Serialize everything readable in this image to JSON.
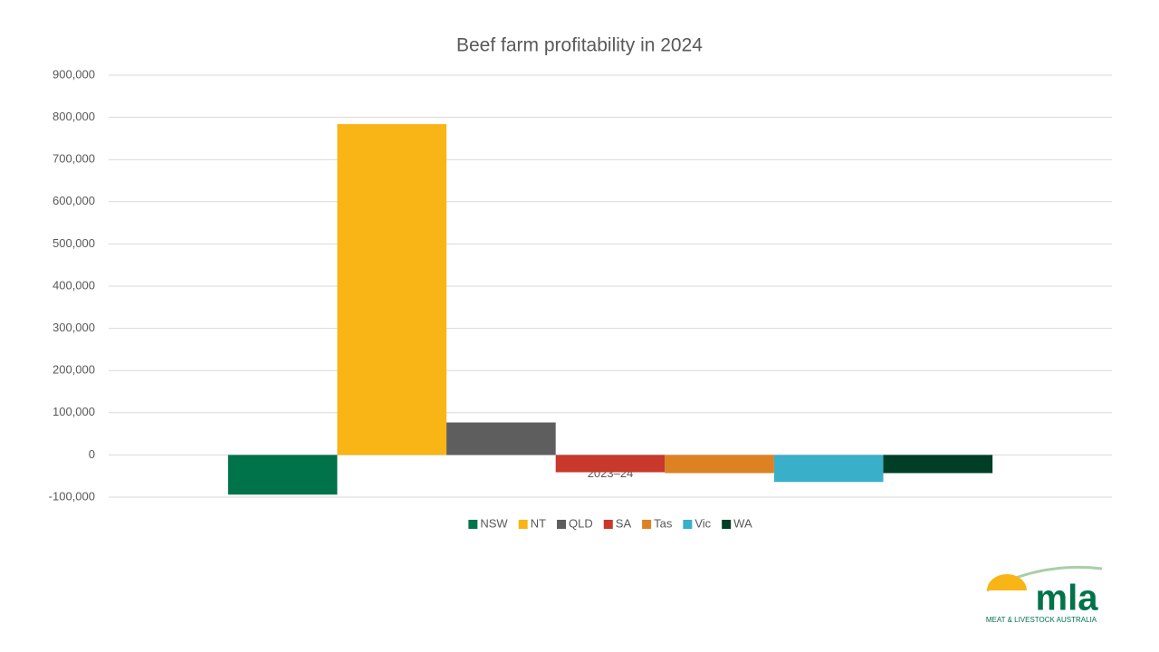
{
  "chart_data": {
    "type": "bar",
    "title": "Beef farm profitability in 2024",
    "categories": [
      "2023–24"
    ],
    "series": [
      {
        "name": "NSW",
        "color": "#00734a",
        "values": [
          -94000
        ]
      },
      {
        "name": "NT",
        "color": "#f9b515",
        "values": [
          784000
        ]
      },
      {
        "name": "QLD",
        "color": "#5e5e5e",
        "values": [
          77000
        ]
      },
      {
        "name": "SA",
        "color": "#c8382b",
        "values": [
          -41000
        ]
      },
      {
        "name": "Tas",
        "color": "#dd8222",
        "values": [
          -43000
        ]
      },
      {
        "name": "Vic",
        "color": "#3aafc9",
        "values": [
          -64000
        ]
      },
      {
        "name": "WA",
        "color": "#003e27",
        "values": [
          -43000
        ]
      }
    ],
    "ylim": [
      -100000,
      900000
    ],
    "yticks": [
      {
        "value": -100000,
        "label": "-100,000"
      },
      0,
      {
        "value": 100000,
        "label": "100,000"
      },
      {
        "value": 200000,
        "label": "200,000"
      },
      {
        "value": 300000,
        "label": "300,000"
      },
      {
        "value": 400000,
        "label": "400,000"
      },
      {
        "value": 500000,
        "label": "500,000"
      },
      {
        "value": 600000,
        "label": "600,000"
      },
      {
        "value": 700000,
        "label": "700,000"
      },
      {
        "value": 800000,
        "label": "800,000"
      },
      {
        "value": 900000,
        "label": "900,000"
      }
    ],
    "grid": true,
    "legend": "bottom"
  },
  "logo": {
    "wordmark": "mla",
    "tagline": "MEAT & LIVESTOCK AUSTRALIA"
  }
}
